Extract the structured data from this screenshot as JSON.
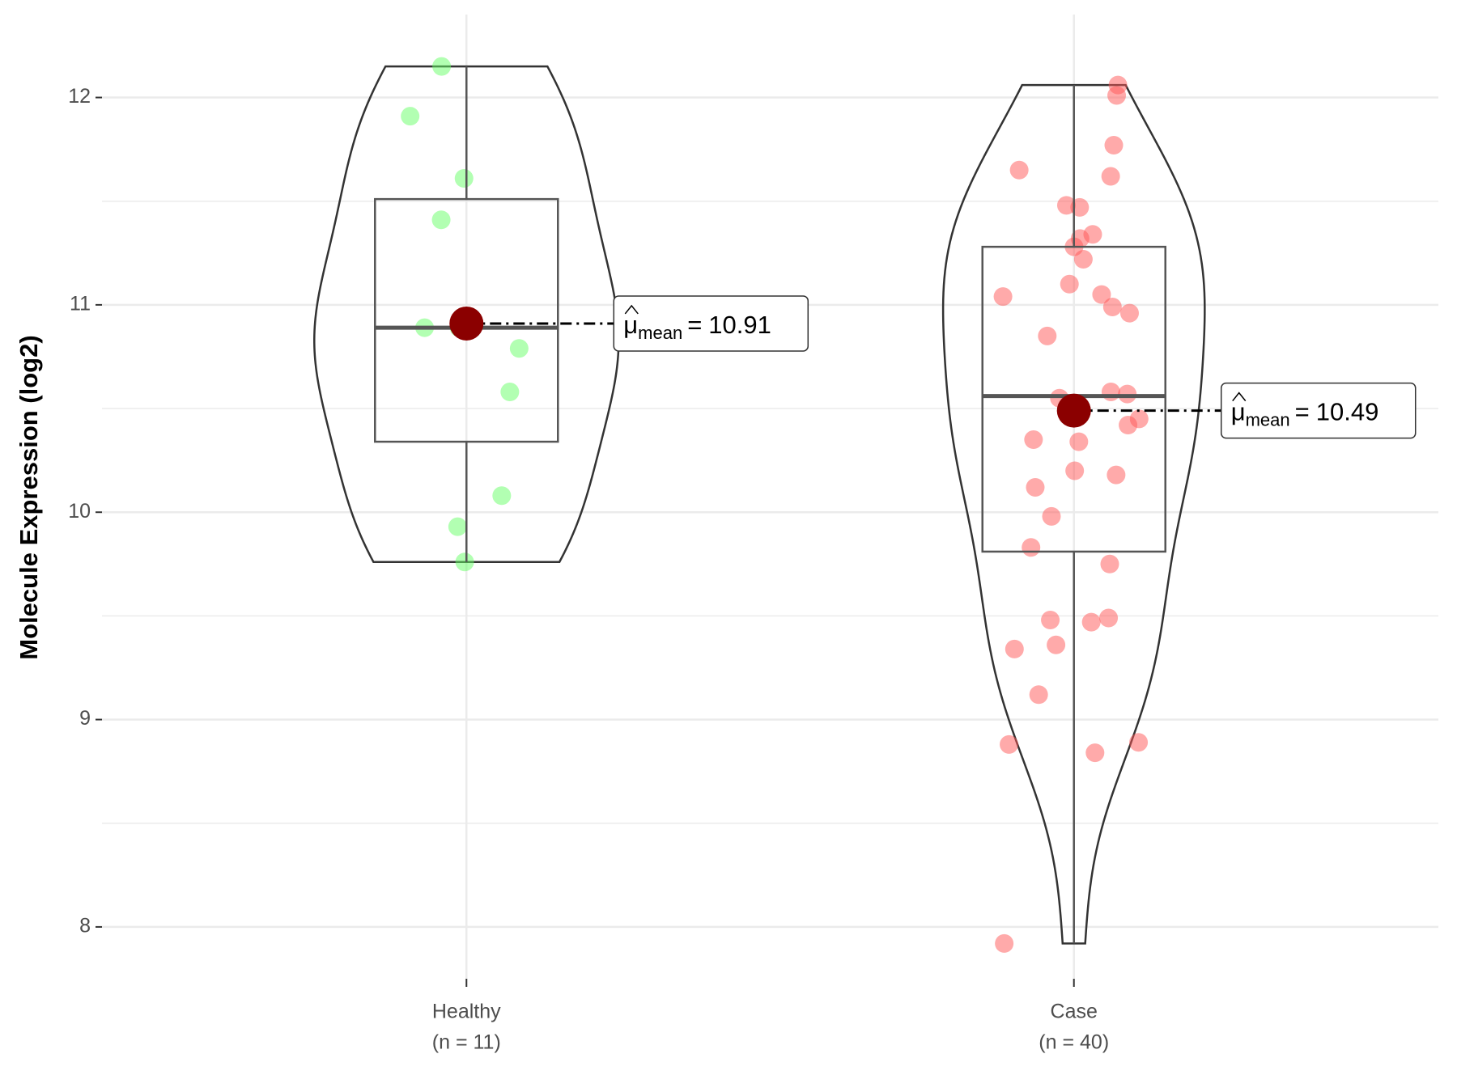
{
  "chart_data": {
    "type": "violin",
    "ylabel": "Molecule Expression (log2)",
    "ylim": [
      7.75,
      12.4
    ],
    "yticks": [
      8,
      9,
      10,
      11,
      12
    ],
    "grid": true,
    "mean_color": "#8b0000",
    "groups": [
      {
        "name": "Healthy",
        "n_label": "(n = 11)",
        "color": "#66ff66",
        "values": [
          12.15,
          11.91,
          11.61,
          11.41,
          10.89,
          10.89,
          10.79,
          10.58,
          10.08,
          9.93,
          9.76
        ],
        "box": {
          "min": 9.76,
          "q1": 10.34,
          "median": 10.89,
          "q3": 11.51,
          "max": 12.15
        },
        "mean": 10.91,
        "mean_symbol": "μ",
        "mean_subscript": "mean",
        "mean_relation": "="
      },
      {
        "name": "Case",
        "n_label": "(n = 40)",
        "color": "#ff5555",
        "values": [
          12.06,
          12.01,
          11.77,
          11.62,
          11.65,
          11.47,
          11.48,
          11.34,
          11.32,
          11.28,
          11.22,
          11.1,
          11.05,
          11.04,
          10.99,
          10.96,
          10.85,
          10.58,
          10.57,
          10.55,
          10.45,
          10.42,
          10.35,
          10.34,
          10.2,
          10.18,
          10.12,
          9.98,
          9.83,
          9.75,
          9.49,
          9.47,
          9.48,
          9.36,
          9.34,
          9.12,
          8.89,
          8.88,
          8.84,
          7.92
        ],
        "box": {
          "min": 7.92,
          "q1": 9.81,
          "median": 10.56,
          "q3": 11.28,
          "max": 12.06
        },
        "mean": 10.49,
        "mean_symbol": "μ",
        "mean_subscript": "mean",
        "mean_relation": "="
      }
    ]
  }
}
